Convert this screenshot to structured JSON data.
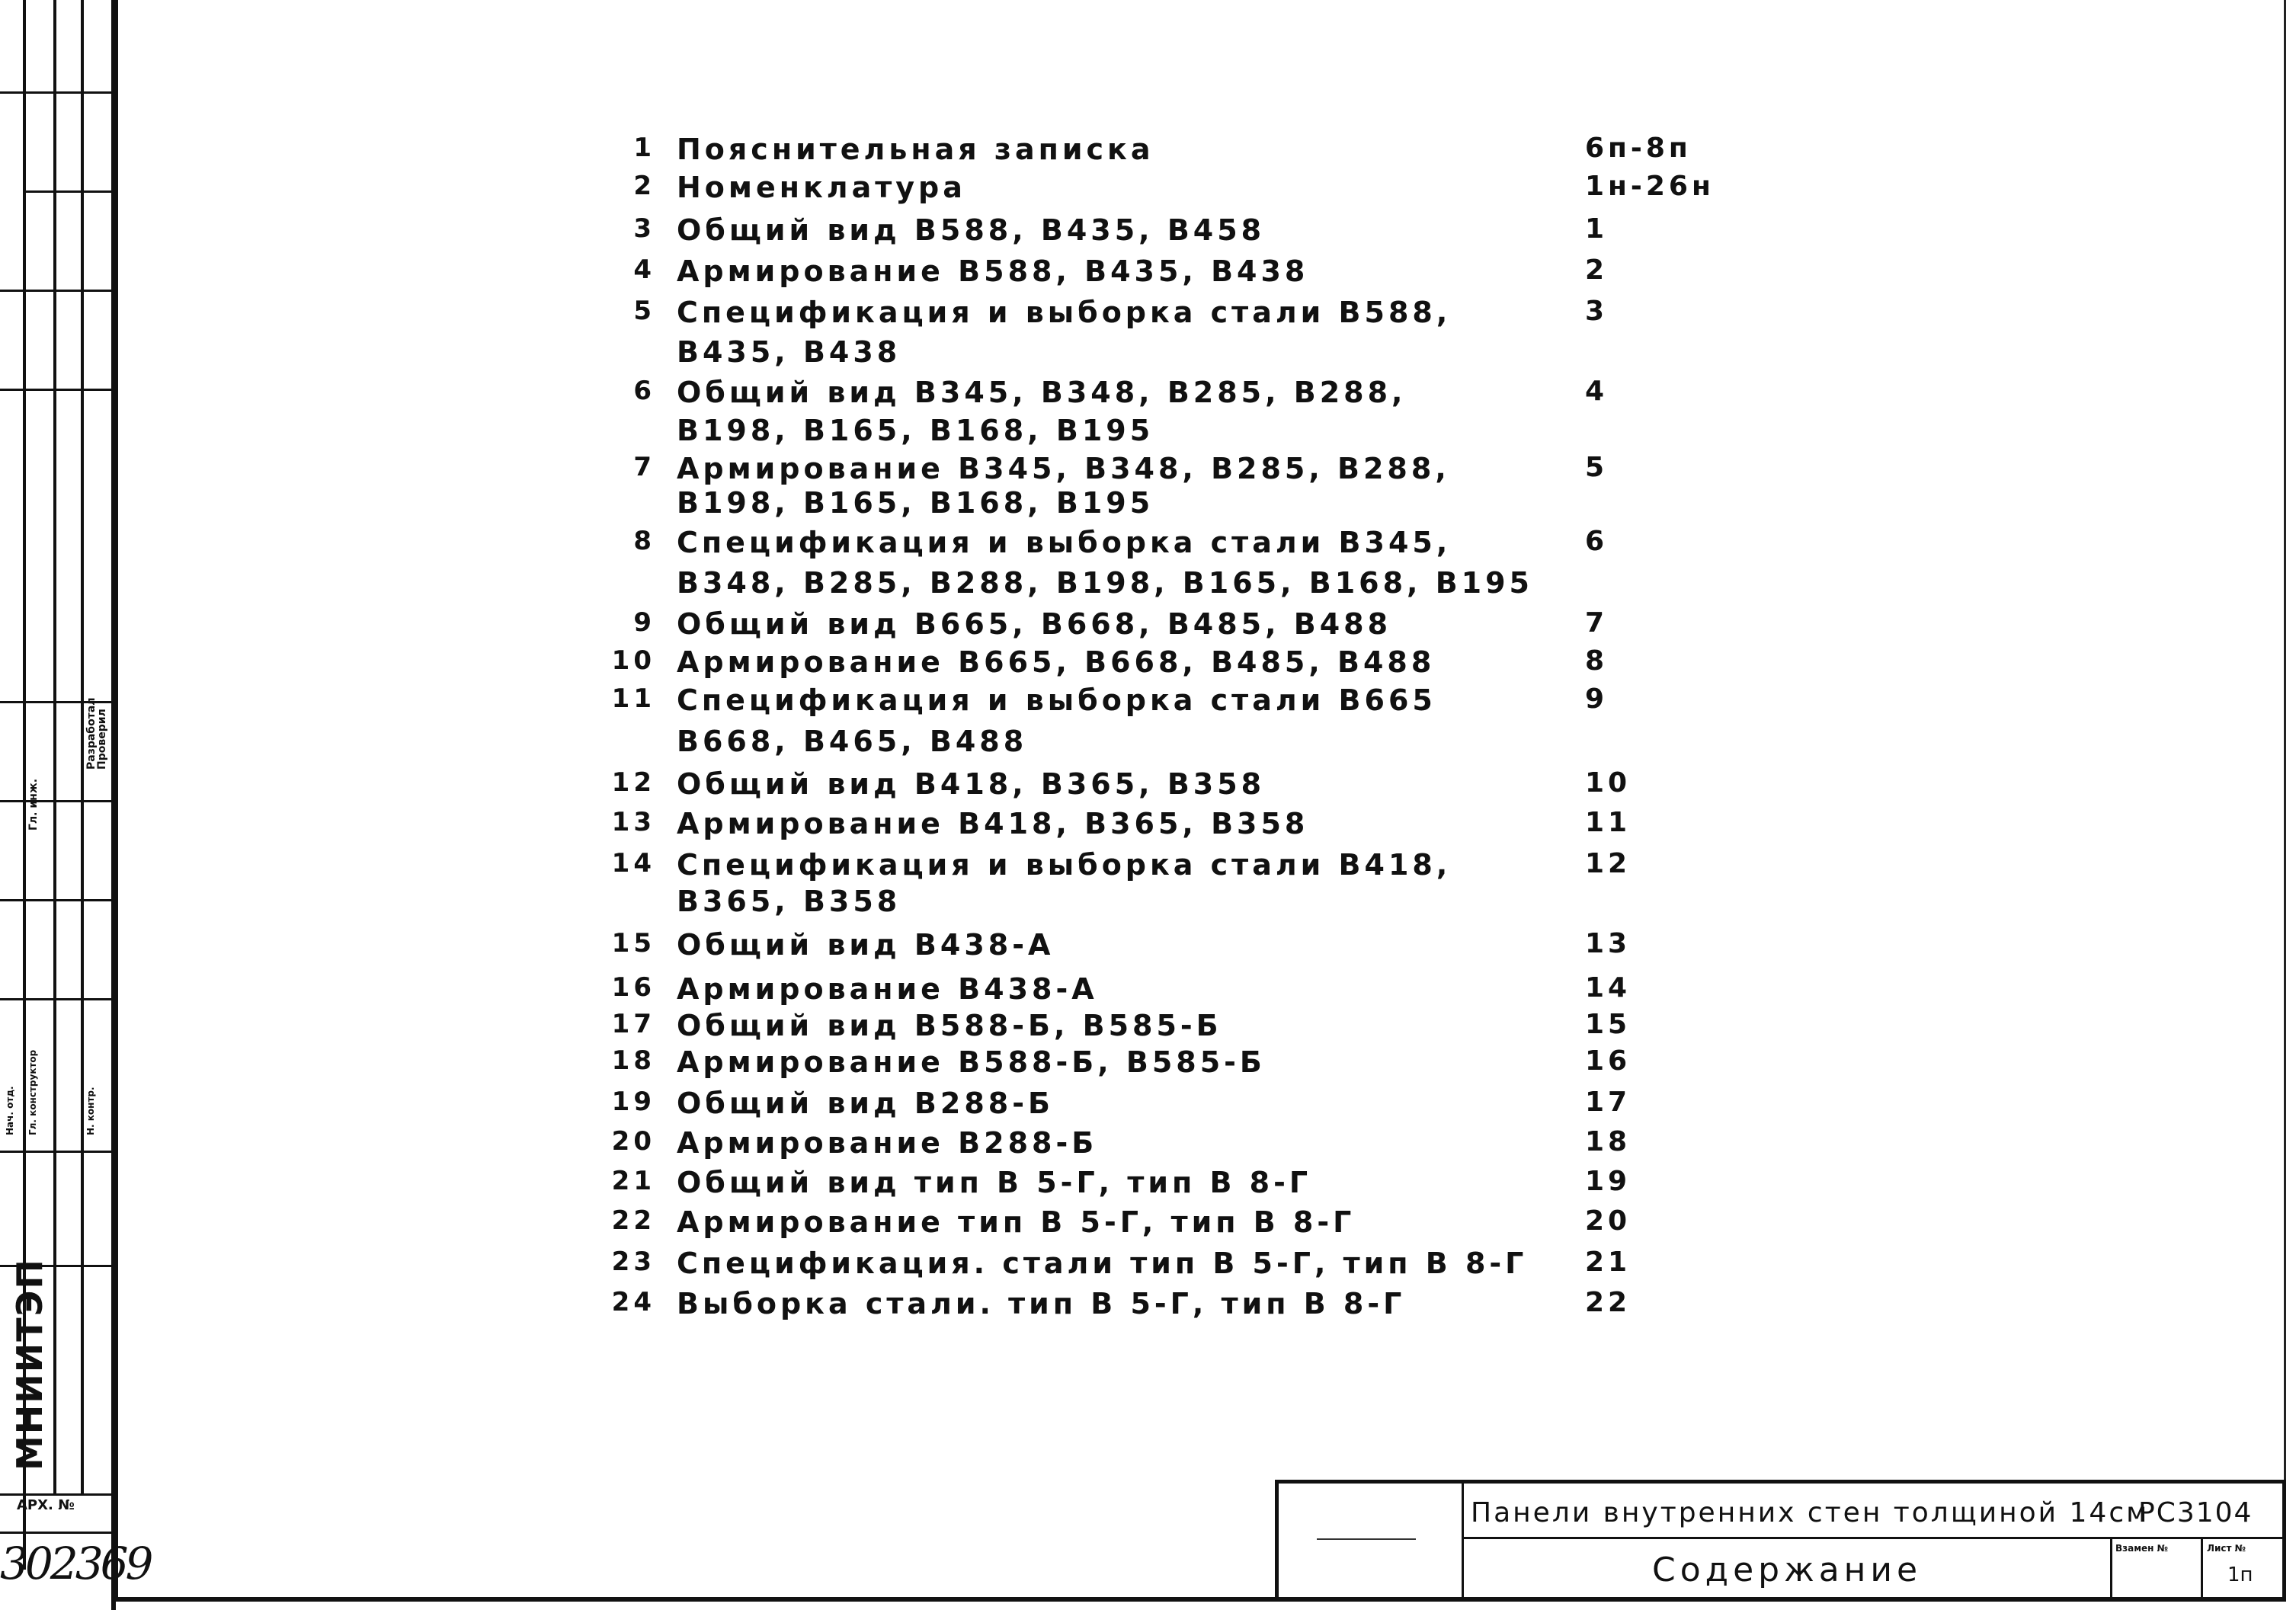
{
  "stamp": {
    "organization": "МНИИТЭП",
    "archive_label": "АРХ. №",
    "archive_number": "302369",
    "roles": [
      "Гл. инж.",
      "Разработал",
      "Проверил",
      "Нач. отд.",
      "Гл. конструктор",
      "Н. контр."
    ]
  },
  "contents": [
    {
      "n": "1",
      "lines": [
        "Пояснительная записка"
      ],
      "page": "6п-8п"
    },
    {
      "n": "2",
      "lines": [
        "Номенклатура"
      ],
      "page": "1н-26н"
    },
    {
      "n": "3",
      "lines": [
        "Общий вид   В588, В435, В458"
      ],
      "page": "1"
    },
    {
      "n": "4",
      "lines": [
        "Армирование   В588, В435, В438"
      ],
      "page": "2"
    },
    {
      "n": "5",
      "lines": [
        "Спецификация  и выборка стали  В588,",
        "В435, В438"
      ],
      "page": "3"
    },
    {
      "n": "6",
      "lines": [
        "Общий    вид  В345, В348, В285, В288,",
        "В198,  В165, В168, В195"
      ],
      "page": "4"
    },
    {
      "n": "7",
      "lines": [
        "Армирование  В345, В348, В285, В288,",
        "В198, В165, В168, В195"
      ],
      "page": "5"
    },
    {
      "n": "8",
      "lines": [
        "Спецификация и выборка стали  В345,",
        "В348, В285, В288, В198, В165, В168, В195"
      ],
      "page": "6"
    },
    {
      "n": "9",
      "lines": [
        "Общий вид  В665, В668, В485, В488"
      ],
      "page": "7"
    },
    {
      "n": "10",
      "lines": [
        "Армирование  В665, В668, В485, В488"
      ],
      "page": "8"
    },
    {
      "n": "11",
      "lines": [
        "Спецификация  и выборка   стали В665",
        "В668, В465, В488"
      ],
      "page": "9"
    },
    {
      "n": "12",
      "lines": [
        "Общий  вид  В418, В365, В358"
      ],
      "page": "10"
    },
    {
      "n": "13",
      "lines": [
        "Армирование  В418, В365, В358"
      ],
      "page": "11"
    },
    {
      "n": "14",
      "lines": [
        "Спецификация и выборка стали В418,",
        "В365, В358"
      ],
      "page": "12"
    },
    {
      "n": "15",
      "lines": [
        "Общий  вид  В438-А"
      ],
      "page": "13"
    },
    {
      "n": "16",
      "lines": [
        "Армирование  В438-А"
      ],
      "page": "14"
    },
    {
      "n": "17",
      "lines": [
        "Общий   вид   В588-Б, В585-Б"
      ],
      "page": "15"
    },
    {
      "n": "18",
      "lines": [
        "Армирование   В588-Б, В585-Б"
      ],
      "page": "16"
    },
    {
      "n": "19",
      "lines": [
        "Общий  вид    В288-Б"
      ],
      "page": "17"
    },
    {
      "n": "20",
      "lines": [
        "Армирование   В288-Б"
      ],
      "page": "18"
    },
    {
      "n": "21",
      "lines": [
        "Общий   вид  тип В 5-Г, тип В 8-Г"
      ],
      "page": "19"
    },
    {
      "n": "22",
      "lines": [
        "Армирование   тип В 5-Г, тип В 8-Г"
      ],
      "page": "20"
    },
    {
      "n": "23",
      "lines": [
        "Спецификация. стали  тип В 5-Г, тип В 8-Г"
      ],
      "page": "21"
    },
    {
      "n": "24",
      "lines": [
        "Выборка   стали.  тип В 5-Г, тип В 8-Г"
      ],
      "page": "22"
    }
  ],
  "title_block": {
    "title": "Панели внутренних стен толщиной 14см",
    "code": "РС3104",
    "sheet_name": "Содержание",
    "replaced_label": "Взамен №",
    "sheet_label": "Лист №",
    "sheet_number": "1п"
  }
}
